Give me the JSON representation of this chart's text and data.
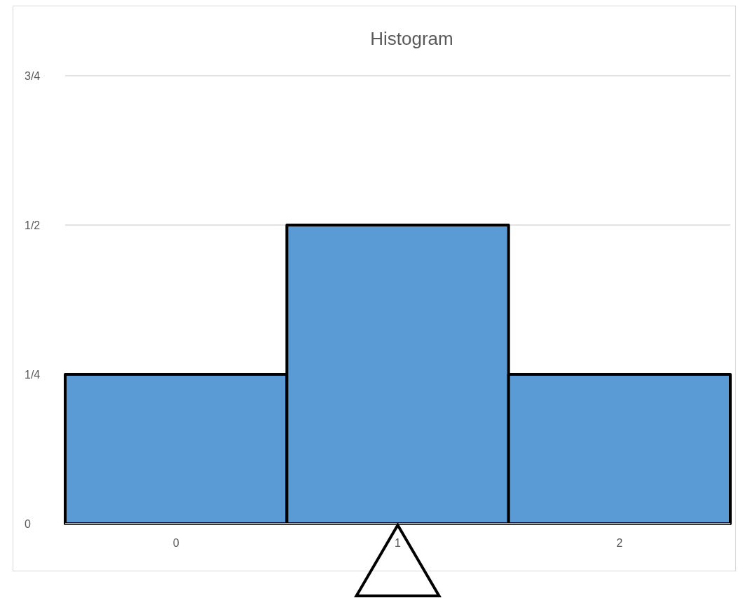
{
  "chart_data": {
    "type": "bar",
    "title": "Histogram",
    "categories": [
      "0",
      "1",
      "2"
    ],
    "values": [
      0.25,
      0.5,
      0.25
    ],
    "color": "#5b9bd5",
    "ylim": [
      0,
      0.75
    ],
    "yticks": [
      {
        "value": 0,
        "label": "0"
      },
      {
        "value": 0.25,
        "label": "1/4"
      },
      {
        "value": 0.5,
        "label": "1/2"
      },
      {
        "value": 0.75,
        "label": "3/4"
      }
    ],
    "grid": "y"
  }
}
